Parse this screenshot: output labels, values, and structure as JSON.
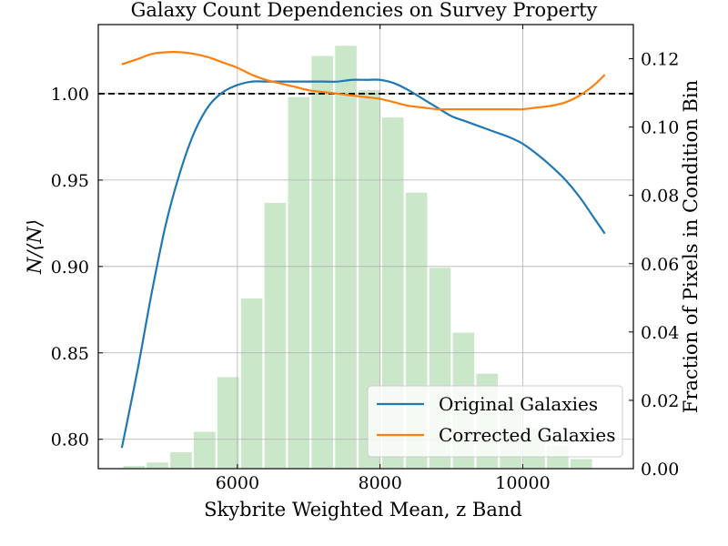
{
  "chart_data": {
    "type": "line",
    "title": "Galaxy Count Dependencies on Survey Property",
    "xlabel": "Skybrite Weighted Mean, z Band",
    "ylabel": "N/⟨N⟩",
    "y2label": "Fraction of Pixels in Condition Bin",
    "xlim": [
      4050,
      11550
    ],
    "ylim": [
      0.783,
      1.04
    ],
    "y2lim": [
      0.0,
      0.13
    ],
    "xticks": [
      6000,
      8000,
      10000
    ],
    "yticks": [
      0.8,
      0.85,
      0.9,
      0.95,
      1.0
    ],
    "ytick_labels": [
      "0.80",
      "0.85",
      "0.90",
      "0.95",
      "1.00"
    ],
    "y2ticks": [
      0.0,
      0.02,
      0.04,
      0.06,
      0.08,
      0.1,
      0.12
    ],
    "y2tick_labels": [
      "0.00",
      "0.02",
      "0.04",
      "0.06",
      "0.08",
      "0.10",
      "0.12"
    ],
    "grid": true,
    "reference_line": {
      "y": 1.0,
      "style": "dashed",
      "color": "#000000"
    },
    "legend_position": "bottom-right",
    "series": [
      {
        "name": "Original Galaxies",
        "color": "#1f77b4",
        "x": [
          4380,
          4600,
          4800,
          5000,
          5200,
          5400,
          5600,
          5800,
          6000,
          6200,
          6400,
          6600,
          6800,
          7000,
          7200,
          7400,
          7600,
          7800,
          8000,
          8200,
          8400,
          8600,
          8800,
          9000,
          9200,
          9400,
          9600,
          9800,
          10000,
          10200,
          10400,
          10600,
          10800,
          11000,
          11150
        ],
        "values": [
          0.795,
          0.84,
          0.885,
          0.925,
          0.955,
          0.978,
          0.993,
          1.001,
          1.005,
          1.007,
          1.007,
          1.007,
          1.007,
          1.007,
          1.007,
          1.007,
          1.008,
          1.008,
          1.008,
          1.006,
          1.002,
          0.997,
          0.992,
          0.987,
          0.984,
          0.981,
          0.978,
          0.975,
          0.971,
          0.965,
          0.958,
          0.95,
          0.94,
          0.928,
          0.919
        ]
      },
      {
        "name": "Corrected Galaxies",
        "color": "#ff7f0e",
        "x": [
          4380,
          4600,
          4800,
          5000,
          5200,
          5400,
          5600,
          5800,
          6000,
          6200,
          6400,
          6600,
          6800,
          7000,
          7200,
          7400,
          7600,
          7800,
          8000,
          8200,
          8400,
          8600,
          8800,
          9000,
          9200,
          9400,
          9600,
          9800,
          10000,
          10200,
          10400,
          10600,
          10800,
          11000,
          11150
        ],
        "values": [
          1.017,
          1.02,
          1.023,
          1.024,
          1.024,
          1.023,
          1.021,
          1.018,
          1.015,
          1.011,
          1.008,
          1.006,
          1.004,
          1.002,
          1.001,
          1.0,
          0.999,
          0.998,
          0.997,
          0.995,
          0.993,
          0.992,
          0.991,
          0.991,
          0.991,
          0.991,
          0.991,
          0.991,
          0.991,
          0.992,
          0.993,
          0.995,
          0.999,
          1.005,
          1.011
        ]
      }
    ],
    "histogram": {
      "color": "#2ca02c",
      "opacity": 0.25,
      "bin_width": 320,
      "x": [
        4550,
        4880,
        5210,
        5540,
        5870,
        6200,
        6530,
        6860,
        7190,
        7520,
        7850,
        8180,
        8510,
        8840,
        9170,
        9500,
        9830,
        10160,
        10490,
        10820
      ],
      "values": [
        0.001,
        0.002,
        0.005,
        0.011,
        0.027,
        0.05,
        0.078,
        0.109,
        0.121,
        0.124,
        0.111,
        0.103,
        0.081,
        0.059,
        0.04,
        0.028,
        0.02,
        0.012,
        0.007,
        0.003
      ]
    }
  }
}
